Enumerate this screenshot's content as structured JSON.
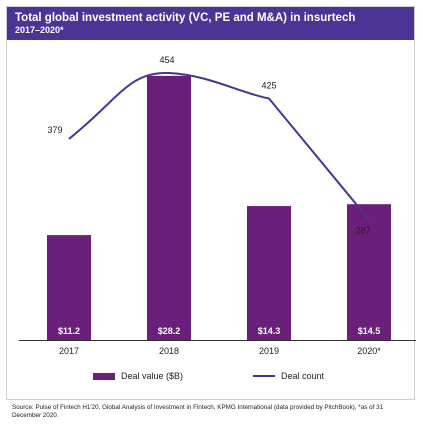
{
  "header": {
    "title": "Total global investment activity (VC, PE and M&A) in insurtech",
    "subtitle": "2017–2020*"
  },
  "colors": {
    "header_bg": "#4b3493",
    "bar": "#6a1f7b",
    "line": "#4b3493",
    "axis": "#333333"
  },
  "chart_data": {
    "type": "bar",
    "categories": [
      "2017",
      "2018",
      "2019",
      "2020*"
    ],
    "series": [
      {
        "name": "Deal value ($B)",
        "type": "bar",
        "values": [
          11.2,
          28.2,
          14.3,
          14.5
        ],
        "labels": [
          "$11.2",
          "$28.2",
          "$14.3",
          "$14.5"
        ]
      },
      {
        "name": "Deal count",
        "type": "line",
        "values": [
          379,
          454,
          425,
          287
        ],
        "labels": [
          "379",
          "454",
          "425",
          "287"
        ]
      }
    ],
    "bar_ylim": [
      0,
      30
    ],
    "line_ylim": [
      150,
      470
    ],
    "grid": false,
    "legend_position": "bottom"
  },
  "legend": {
    "bar_label": "Deal value ($B)",
    "line_label": "Deal count"
  },
  "source": "Source: Pulse of Fintech H1'20, Global Analysis of Investment in Fintech, KPMG International (data provided by PitchBook), *as of 31 December 2020."
}
